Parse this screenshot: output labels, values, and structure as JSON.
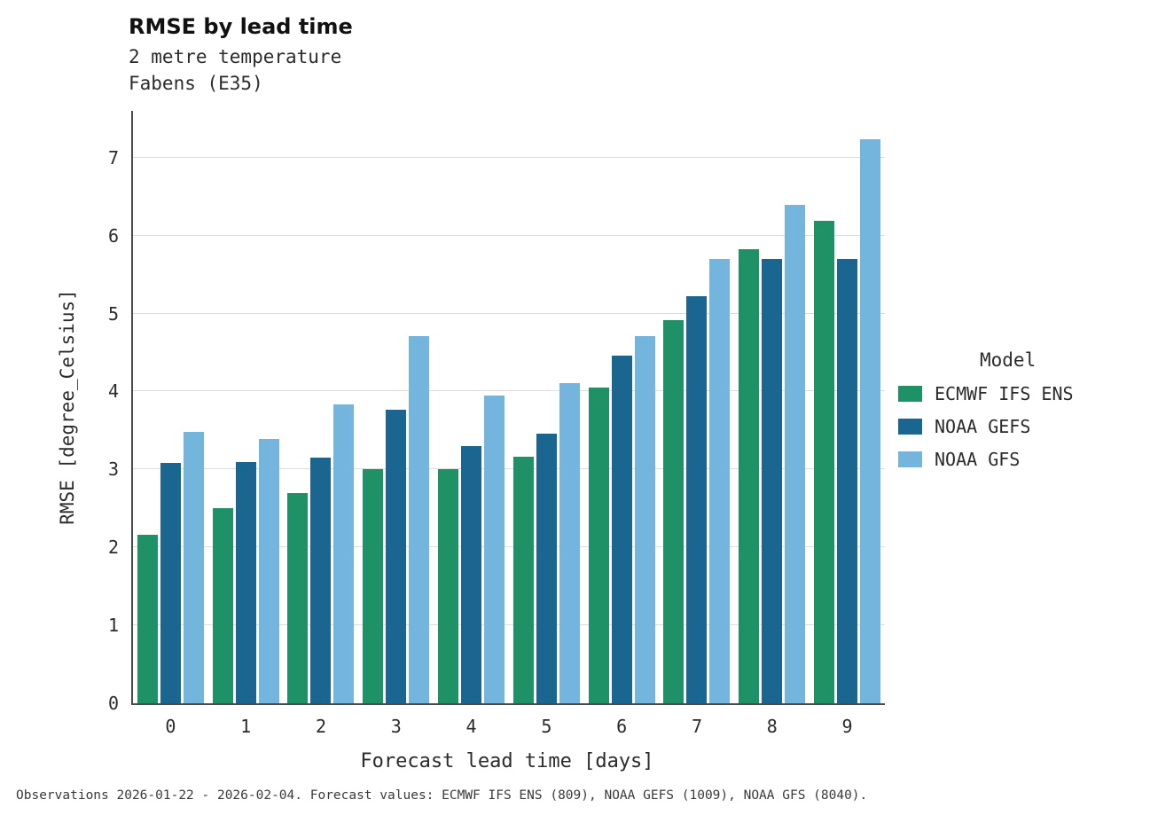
{
  "title": "RMSE by lead time",
  "subtitle_line1": "2 metre temperature",
  "subtitle_line2": "Fabens (E35)",
  "footer": "Observations 2026-01-22 - 2026-02-04. Forecast values: ECMWF IFS ENS (809), NOAA GEFS (1009), NOAA GFS (8040).",
  "legend": {
    "title": "Model"
  },
  "chart_data": {
    "type": "bar",
    "title": "RMSE by lead time",
    "subtitle": "2 metre temperature, Fabens (E35)",
    "categories": [
      "0",
      "1",
      "2",
      "3",
      "4",
      "5",
      "6",
      "7",
      "8",
      "9"
    ],
    "series": [
      {
        "name": "ECMWF IFS ENS",
        "color": "#1e9266",
        "values": [
          2.16,
          2.5,
          2.7,
          3.0,
          3.0,
          3.16,
          4.05,
          4.91,
          5.83,
          6.19
        ]
      },
      {
        "name": "NOAA GEFS",
        "color": "#1a6690",
        "values": [
          3.08,
          3.1,
          3.15,
          3.77,
          3.3,
          3.46,
          4.46,
          5.22,
          5.7,
          5.7
        ]
      },
      {
        "name": "NOAA GFS",
        "color": "#74b5de",
        "values": [
          3.48,
          3.39,
          3.83,
          4.71,
          3.95,
          4.11,
          4.71,
          5.7,
          6.39,
          7.24
        ]
      }
    ],
    "xlabel": "Forecast lead time [days]",
    "ylabel": "RMSE [degree_Celsius]",
    "ylim": [
      0,
      7.6
    ],
    "yticks": [
      0,
      1,
      2,
      3,
      4,
      5,
      6,
      7
    ],
    "grid": "horizontal",
    "legend_title": "Model",
    "legend_position": "right"
  }
}
